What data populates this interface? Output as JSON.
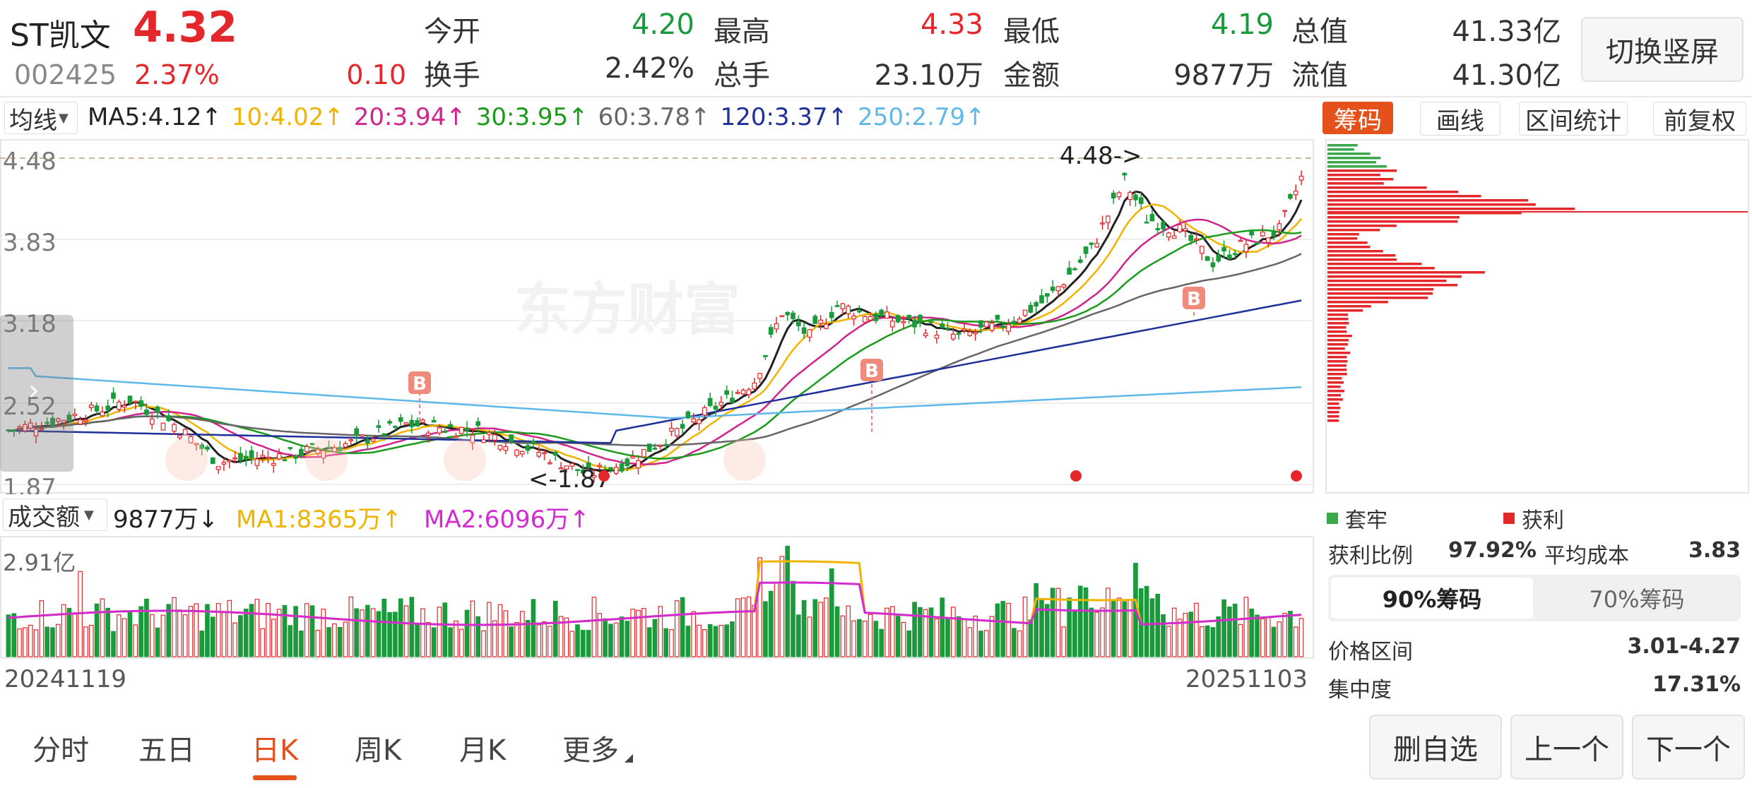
{
  "header": {
    "stock_name": "ST凯文",
    "price": "4.32",
    "code": "002425",
    "change_pct": "2.37%",
    "change_amt": "0.10",
    "stats": [
      {
        "label": "今开",
        "value": "4.20",
        "color": "#1a9b3b"
      },
      {
        "label": "最高",
        "value": "4.33",
        "color": "#e4272b"
      },
      {
        "label": "最低",
        "value": "4.19",
        "color": "#1a9b3b"
      },
      {
        "label": "总值",
        "value": "41.33亿",
        "color": "#333333"
      },
      {
        "label": "换手",
        "value": "2.42%",
        "color": "#333333"
      },
      {
        "label": "总手",
        "value": "23.10万",
        "color": "#333333"
      },
      {
        "label": "金额",
        "value": "9877万",
        "color": "#333333"
      },
      {
        "label": "流值",
        "value": "41.30亿",
        "color": "#333333"
      }
    ],
    "switch_button": "切换竖屏"
  },
  "ma_bar": {
    "selector": "均线",
    "items": [
      {
        "text": "MA5:4.12↑",
        "color": "#222222"
      },
      {
        "text": "10:4.02↑",
        "color": "#f0b400"
      },
      {
        "text": "20:3.94↑",
        "color": "#d1238c"
      },
      {
        "text": "30:3.95↑",
        "color": "#1a9b1a"
      },
      {
        "text": "60:3.78↑",
        "color": "#666666"
      },
      {
        "text": "120:3.37↑",
        "color": "#1f2f9a"
      },
      {
        "text": "250:2.79↑",
        "color": "#5fb8ea"
      }
    ]
  },
  "right_tabs": [
    "筹码",
    "画线",
    "区间统计",
    "前复权"
  ],
  "main_chart": {
    "y_labels": [
      "4.48",
      "3.83",
      "3.18",
      "2.52",
      "1.87"
    ],
    "high_marker": "4.48->",
    "low_marker": "<-1.87",
    "signal_letter": "B",
    "watermark": "东方财富"
  },
  "volume_bar": {
    "selector": "成交额",
    "value": "9877万↓",
    "ma1": "MA1:8365万↑",
    "ma2": "MA2:6096万↑",
    "max_label": "2.91亿",
    "colors": {
      "ma1": "#f0b400",
      "ma2": "#d12bd1"
    }
  },
  "dates": {
    "start": "20241119",
    "end": "20251103"
  },
  "chip_panel": {
    "legend_loss": "套牢",
    "legend_profit": "获利",
    "profit_ratio_label": "获利比例",
    "profit_ratio_value": "97.92%",
    "avg_cost_label": "平均成本",
    "avg_cost_value": "3.83",
    "tab_90": "90%筹码",
    "tab_70": "70%筹码",
    "price_range_label": "价格区间",
    "price_range_value": "3.01-4.27",
    "concentration_label": "集中度",
    "concentration_value": "17.31%"
  },
  "bottom_tabs": [
    "分时",
    "五日",
    "日K",
    "周K",
    "月K",
    "更多"
  ],
  "bottom_buttons": [
    "删自选",
    "上一个",
    "下一个"
  ],
  "colors": {
    "up": "#e4272b",
    "down": "#1a9b3b",
    "accent": "#e4511b"
  }
}
